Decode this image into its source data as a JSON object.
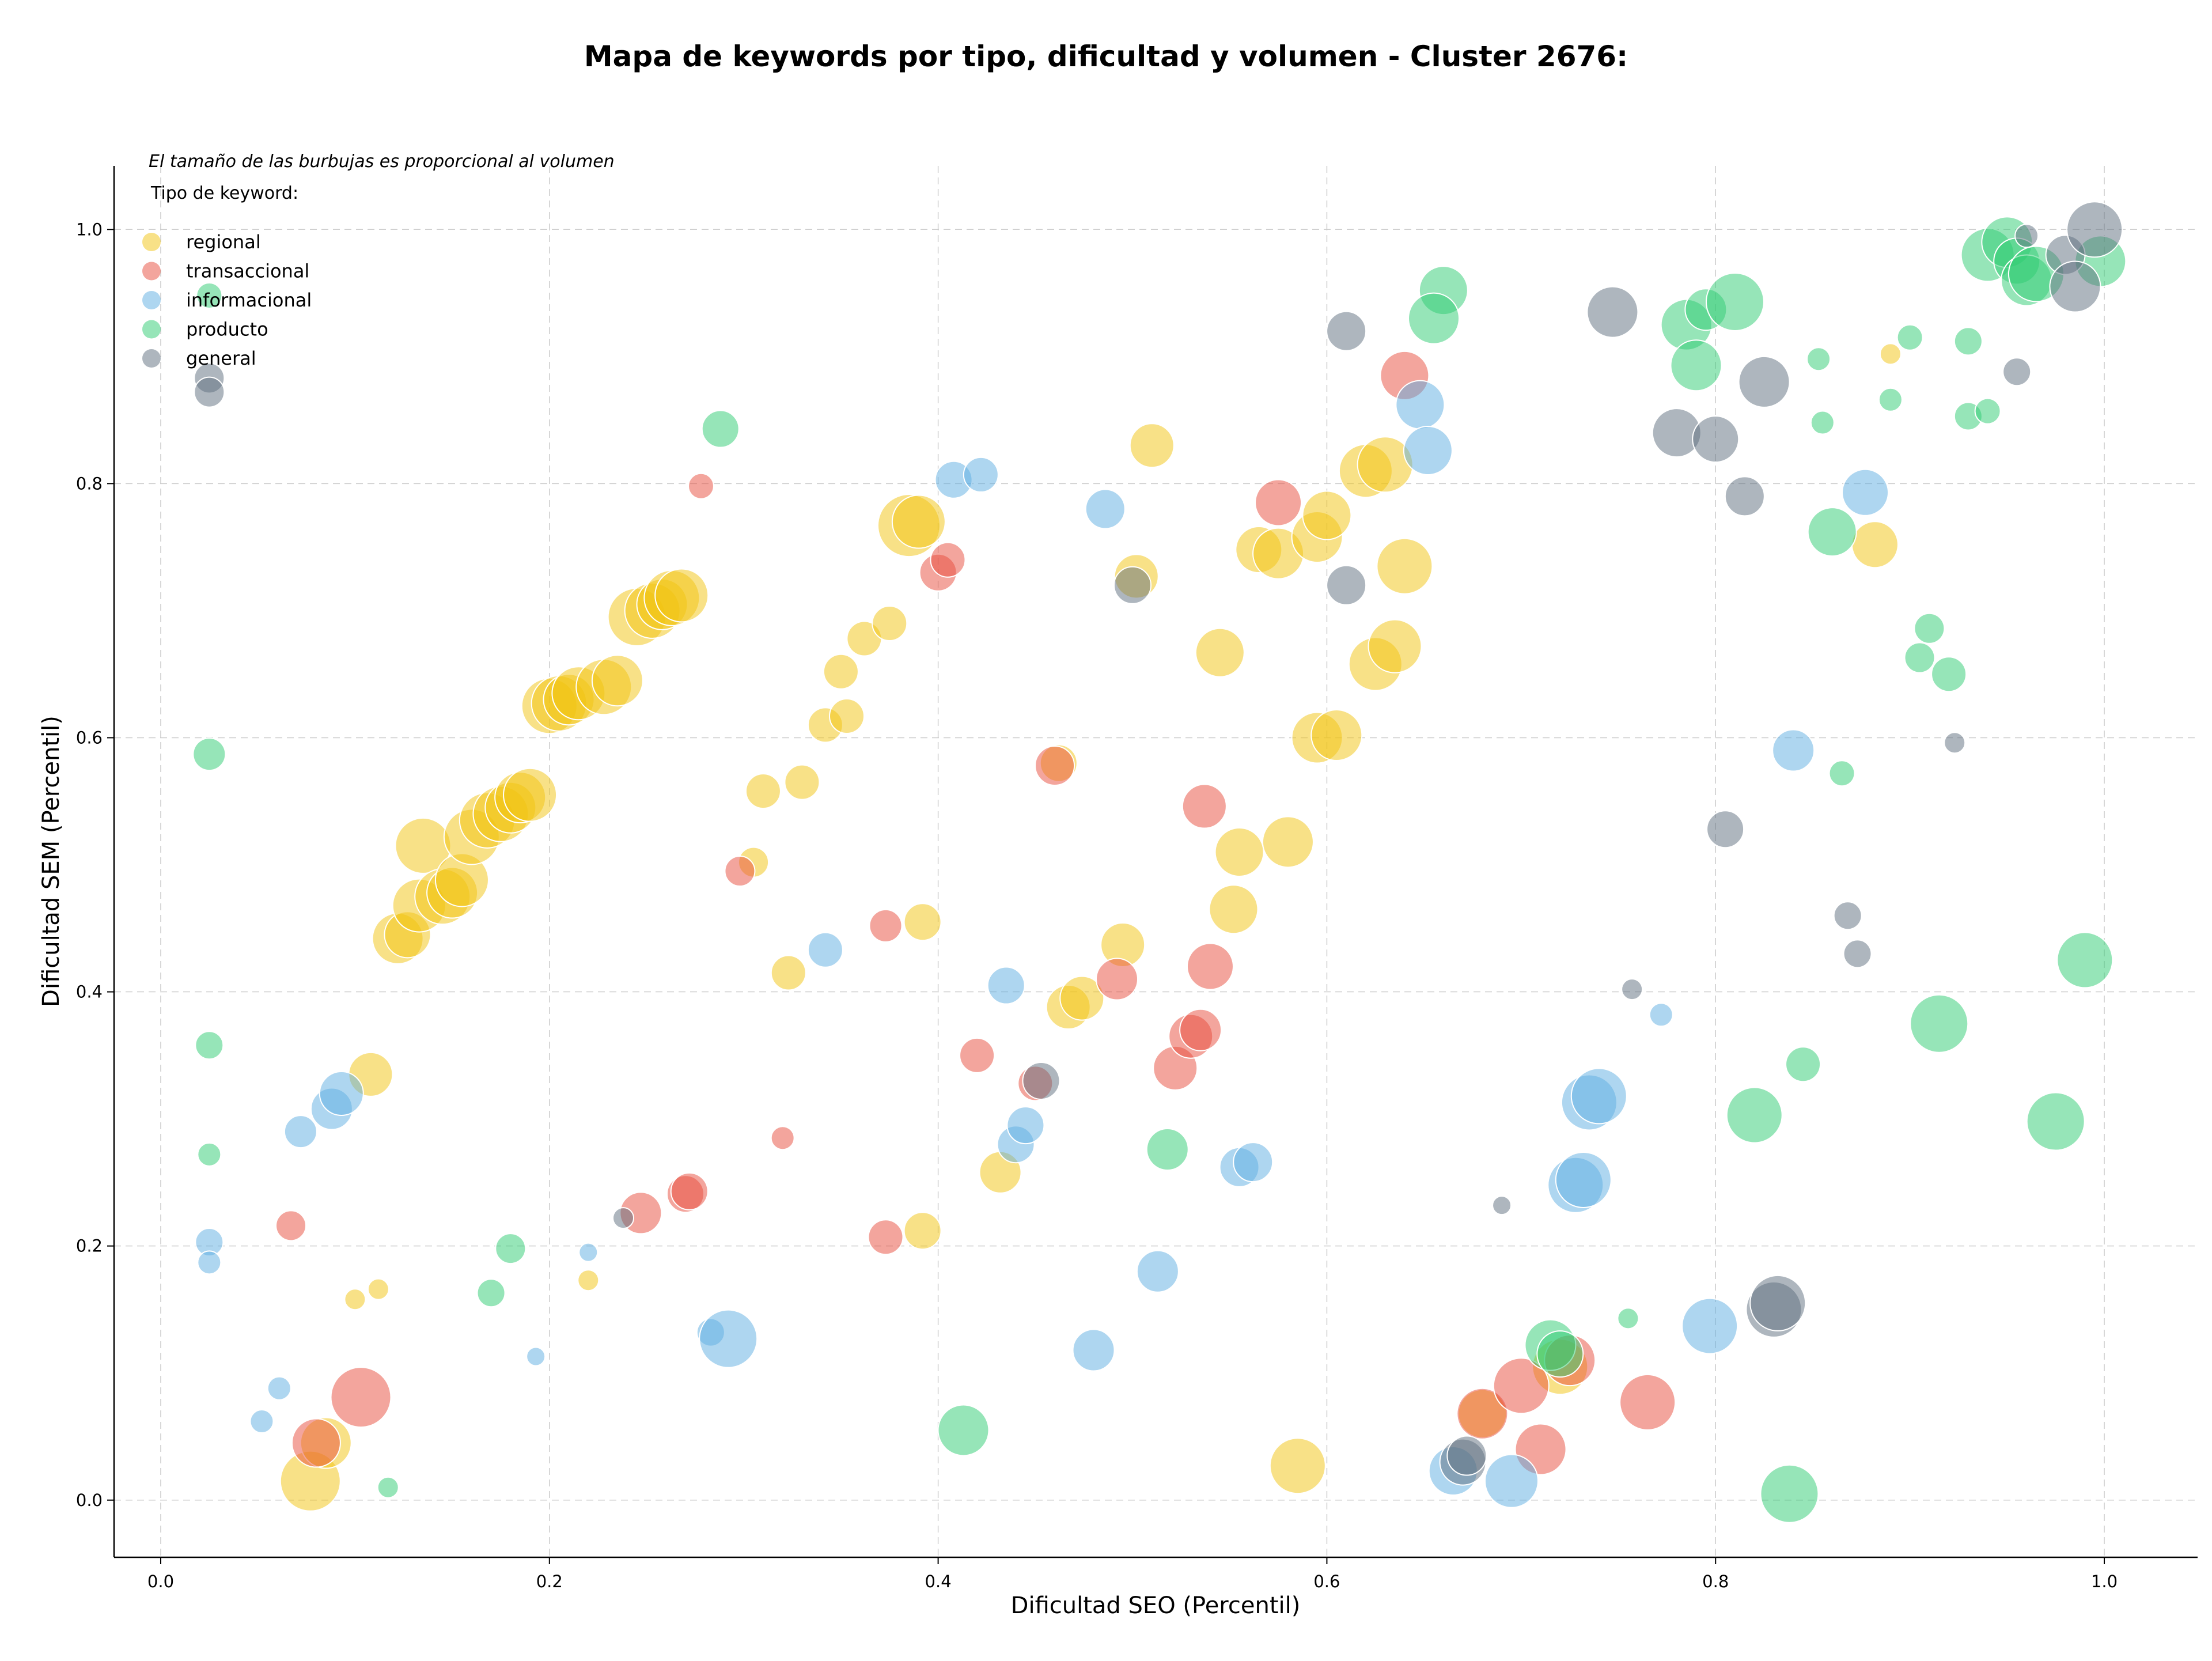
{
  "chart_data": {
    "type": "scatter",
    "title": "Mapa de keywords por tipo, dificultad y volumen - Cluster 2676:",
    "xlabel": "Dificultad SEO (Percentil)",
    "ylabel": "Dificultad SEM (Percentil)",
    "xlim": [
      -0.024,
      1.048
    ],
    "ylim": [
      -0.045,
      1.05
    ],
    "xticks": [
      "0.0",
      "0.2",
      "0.4",
      "0.6",
      "0.8",
      "1.0"
    ],
    "yticks": [
      "0.0",
      "0.2",
      "0.4",
      "0.6",
      "0.8",
      "1.0"
    ],
    "grid": true,
    "note": "El tamaño de las burbujas es proporcional al volumen",
    "legend_title": "Tipo de keyword:",
    "legend_position": "top-left",
    "series": [
      {
        "name": "regional",
        "color": "#f1c40f",
        "points": [
          [
            0.077,
            0.015,
            2.6
          ],
          [
            0.085,
            0.045,
            2.2
          ],
          [
            0.1,
            0.158,
            0.9
          ],
          [
            0.112,
            0.166,
            0.9
          ],
          [
            0.108,
            0.335,
            1.9
          ],
          [
            0.122,
            0.442,
            2.2
          ],
          [
            0.127,
            0.445,
            2.0
          ],
          [
            0.133,
            0.468,
            2.3
          ],
          [
            0.135,
            0.515,
            2.4
          ],
          [
            0.145,
            0.475,
            2.4
          ],
          [
            0.15,
            0.478,
            2.2
          ],
          [
            0.155,
            0.488,
            2.3
          ],
          [
            0.16,
            0.522,
            2.4
          ],
          [
            0.168,
            0.535,
            2.4
          ],
          [
            0.175,
            0.54,
            2.4
          ],
          [
            0.18,
            0.545,
            2.2
          ],
          [
            0.185,
            0.553,
            2.2
          ],
          [
            0.19,
            0.555,
            2.3
          ],
          [
            0.2,
            0.625,
            2.4
          ],
          [
            0.205,
            0.627,
            2.4
          ],
          [
            0.21,
            0.63,
            2.2
          ],
          [
            0.215,
            0.635,
            2.3
          ],
          [
            0.228,
            0.64,
            2.4
          ],
          [
            0.235,
            0.645,
            2.2
          ],
          [
            0.245,
            0.695,
            2.5
          ],
          [
            0.253,
            0.7,
            2.4
          ],
          [
            0.258,
            0.705,
            2.2
          ],
          [
            0.263,
            0.71,
            2.4
          ],
          [
            0.268,
            0.712,
            2.3
          ],
          [
            0.22,
            0.173,
            0.9
          ],
          [
            0.305,
            0.502,
            1.3
          ],
          [
            0.31,
            0.558,
            1.5
          ],
          [
            0.323,
            0.415,
            1.5
          ],
          [
            0.33,
            0.565,
            1.5
          ],
          [
            0.342,
            0.61,
            1.5
          ],
          [
            0.35,
            0.652,
            1.5
          ],
          [
            0.353,
            0.617,
            1.5
          ],
          [
            0.362,
            0.678,
            1.5
          ],
          [
            0.375,
            0.69,
            1.5
          ],
          [
            0.385,
            0.767,
            2.7
          ],
          [
            0.39,
            0.77,
            2.3
          ],
          [
            0.392,
            0.455,
            1.6
          ],
          [
            0.392,
            0.212,
            1.6
          ],
          [
            0.432,
            0.258,
            1.8
          ],
          [
            0.462,
            0.58,
            1.6
          ],
          [
            0.467,
            0.388,
            1.9
          ],
          [
            0.474,
            0.395,
            1.9
          ],
          [
            0.495,
            0.437,
            1.9
          ],
          [
            0.502,
            0.727,
            1.9
          ],
          [
            0.51,
            0.83,
            1.9
          ],
          [
            0.545,
            0.667,
            2.1
          ],
          [
            0.555,
            0.51,
            2.1
          ],
          [
            0.552,
            0.465,
            2.1
          ],
          [
            0.565,
            0.748,
            2.0
          ],
          [
            0.575,
            0.745,
            2.2
          ],
          [
            0.585,
            0.027,
            2.4
          ],
          [
            0.58,
            0.518,
            2.2
          ],
          [
            0.595,
            0.758,
            2.2
          ],
          [
            0.6,
            0.775,
            2.1
          ],
          [
            0.595,
            0.6,
            2.2
          ],
          [
            0.605,
            0.602,
            2.2
          ],
          [
            0.62,
            0.81,
            2.3
          ],
          [
            0.625,
            0.658,
            2.3
          ],
          [
            0.63,
            0.815,
            2.4
          ],
          [
            0.635,
            0.672,
            2.3
          ],
          [
            0.64,
            0.735,
            2.4
          ],
          [
            0.68,
            0.068,
            2.1
          ],
          [
            0.72,
            0.105,
            2.4
          ],
          [
            0.882,
            0.752,
            2.0
          ],
          [
            0.89,
            0.902,
            0.9
          ]
        ]
      },
      {
        "name": "transaccional",
        "color": "#e74c3c",
        "points": [
          [
            0.067,
            0.216,
            1.3
          ],
          [
            0.08,
            0.045,
            2.1
          ],
          [
            0.103,
            0.081,
            2.6
          ],
          [
            0.247,
            0.226,
            1.8
          ],
          [
            0.27,
            0.241,
            1.6
          ],
          [
            0.272,
            0.243,
            1.6
          ],
          [
            0.278,
            0.798,
            1.1
          ],
          [
            0.298,
            0.495,
            1.3
          ],
          [
            0.32,
            0.285,
            1.0
          ],
          [
            0.373,
            0.452,
            1.4
          ],
          [
            0.373,
            0.207,
            1.5
          ],
          [
            0.4,
            0.73,
            1.6
          ],
          [
            0.405,
            0.74,
            1.5
          ],
          [
            0.42,
            0.35,
            1.5
          ],
          [
            0.45,
            0.328,
            1.5
          ],
          [
            0.46,
            0.578,
            1.7
          ],
          [
            0.492,
            0.41,
            1.8
          ],
          [
            0.522,
            0.34,
            1.9
          ],
          [
            0.53,
            0.365,
            1.9
          ],
          [
            0.535,
            0.37,
            1.8
          ],
          [
            0.537,
            0.546,
            1.9
          ],
          [
            0.54,
            0.42,
            2.0
          ],
          [
            0.575,
            0.785,
            2.0
          ],
          [
            0.64,
            0.885,
            2.1
          ],
          [
            0.68,
            0.068,
            2.2
          ],
          [
            0.7,
            0.09,
            2.4
          ],
          [
            0.71,
            0.04,
            2.2
          ],
          [
            0.725,
            0.11,
            2.2
          ],
          [
            0.765,
            0.077,
            2.4
          ]
        ]
      },
      {
        "name": "informacional",
        "color": "#5dade2",
        "points": [
          [
            0.025,
            0.203,
            1.2
          ],
          [
            0.025,
            0.187,
            1.0
          ],
          [
            0.052,
            0.062,
            1.0
          ],
          [
            0.061,
            0.088,
            1.0
          ],
          [
            0.072,
            0.29,
            1.4
          ],
          [
            0.088,
            0.308,
            1.8
          ],
          [
            0.093,
            0.32,
            1.9
          ],
          [
            0.193,
            0.113,
            0.8
          ],
          [
            0.22,
            0.195,
            0.8
          ],
          [
            0.283,
            0.132,
            1.2
          ],
          [
            0.292,
            0.127,
            2.5
          ],
          [
            0.342,
            0.433,
            1.5
          ],
          [
            0.408,
            0.803,
            1.6
          ],
          [
            0.422,
            0.807,
            1.5
          ],
          [
            0.435,
            0.405,
            1.6
          ],
          [
            0.44,
            0.28,
            1.6
          ],
          [
            0.445,
            0.295,
            1.6
          ],
          [
            0.48,
            0.118,
            1.8
          ],
          [
            0.486,
            0.78,
            1.7
          ],
          [
            0.513,
            0.18,
            1.8
          ],
          [
            0.555,
            0.262,
            1.7
          ],
          [
            0.562,
            0.266,
            1.7
          ],
          [
            0.648,
            0.862,
            2.1
          ],
          [
            0.652,
            0.826,
            2.1
          ],
          [
            0.665,
            0.023,
            2.1
          ],
          [
            0.695,
            0.015,
            2.3
          ],
          [
            0.728,
            0.248,
            2.4
          ],
          [
            0.732,
            0.252,
            2.4
          ],
          [
            0.735,
            0.313,
            2.4
          ],
          [
            0.74,
            0.318,
            2.4
          ],
          [
            0.772,
            0.382,
            1.0
          ],
          [
            0.797,
            0.137,
            2.4
          ],
          [
            0.84,
            0.59,
            1.8
          ],
          [
            0.877,
            0.793,
            2.0
          ]
        ]
      },
      {
        "name": "producto",
        "color": "#2ecc71",
        "points": [
          [
            0.025,
            0.948,
            1.1
          ],
          [
            0.025,
            0.587,
            1.4
          ],
          [
            0.025,
            0.358,
            1.2
          ],
          [
            0.025,
            0.272,
            1.0
          ],
          [
            0.117,
            0.01,
            0.9
          ],
          [
            0.17,
            0.163,
            1.2
          ],
          [
            0.18,
            0.198,
            1.3
          ],
          [
            0.288,
            0.843,
            1.6
          ],
          [
            0.413,
            0.055,
            2.2
          ],
          [
            0.518,
            0.276,
            1.8
          ],
          [
            0.66,
            0.952,
            2.1
          ],
          [
            0.655,
            0.93,
            2.2
          ],
          [
            0.715,
            0.122,
            2.2
          ],
          [
            0.72,
            0.115,
            2.0
          ],
          [
            0.755,
            0.143,
            0.9
          ],
          [
            0.785,
            0.925,
            2.2
          ],
          [
            0.79,
            0.893,
            2.2
          ],
          [
            0.795,
            0.937,
            1.8
          ],
          [
            0.81,
            0.943,
            2.5
          ],
          [
            0.82,
            0.303,
            2.4
          ],
          [
            0.838,
            0.005,
            2.5
          ],
          [
            0.845,
            0.343,
            1.5
          ],
          [
            0.853,
            0.898,
            1.0
          ],
          [
            0.855,
            0.848,
            1.0
          ],
          [
            0.86,
            0.762,
            2.1
          ],
          [
            0.865,
            0.572,
            1.1
          ],
          [
            0.89,
            0.866,
            1.0
          ],
          [
            0.9,
            0.915,
            1.1
          ],
          [
            0.91,
            0.686,
            1.3
          ],
          [
            0.905,
            0.663,
            1.3
          ],
          [
            0.915,
            0.375,
            2.5
          ],
          [
            0.92,
            0.65,
            1.5
          ],
          [
            0.93,
            0.912,
            1.2
          ],
          [
            0.93,
            0.853,
            1.2
          ],
          [
            0.94,
            0.857,
            1.1
          ],
          [
            0.94,
            0.98,
            2.3
          ],
          [
            0.95,
            0.99,
            2.2
          ],
          [
            0.955,
            0.975,
            2.0
          ],
          [
            0.96,
            0.96,
            2.2
          ],
          [
            0.965,
            0.965,
            2.4
          ],
          [
            0.975,
            0.298,
            2.5
          ],
          [
            0.99,
            0.425,
            2.4
          ],
          [
            0.998,
            0.975,
            2.2
          ]
        ]
      },
      {
        "name": "general",
        "color": "#5d6d7e",
        "points": [
          [
            0.025,
            0.883,
            1.3
          ],
          [
            0.025,
            0.872,
            1.3
          ],
          [
            0.238,
            0.222,
            0.9
          ],
          [
            0.453,
            0.33,
            1.6
          ],
          [
            0.5,
            0.72,
            1.6
          ],
          [
            0.61,
            0.92,
            1.7
          ],
          [
            0.61,
            0.72,
            1.7
          ],
          [
            0.69,
            0.232,
            0.8
          ],
          [
            0.67,
            0.03,
            2.0
          ],
          [
            0.672,
            0.035,
            1.7
          ],
          [
            0.747,
            0.935,
            2.2
          ],
          [
            0.757,
            0.402,
            0.9
          ],
          [
            0.78,
            0.84,
            2.1
          ],
          [
            0.8,
            0.835,
            2.0
          ],
          [
            0.805,
            0.528,
            1.6
          ],
          [
            0.815,
            0.79,
            1.7
          ],
          [
            0.825,
            0.88,
            2.2
          ],
          [
            0.83,
            0.15,
            2.4
          ],
          [
            0.832,
            0.155,
            2.4
          ],
          [
            0.868,
            0.46,
            1.2
          ],
          [
            0.873,
            0.43,
            1.2
          ],
          [
            0.923,
            0.596,
            0.9
          ],
          [
            0.955,
            0.888,
            1.2
          ],
          [
            0.96,
            0.995,
            1.0
          ],
          [
            0.98,
            0.98,
            1.7
          ],
          [
            0.985,
            0.955,
            2.2
          ],
          [
            0.995,
            1.0,
            2.4
          ]
        ]
      }
    ]
  }
}
